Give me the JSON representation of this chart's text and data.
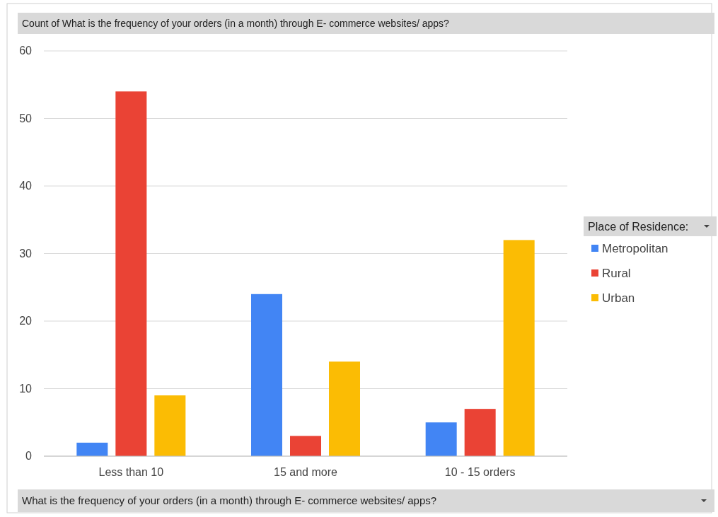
{
  "chart_data": {
    "type": "bar",
    "title": "Count of What is the frequency of your orders (in a month) through E- commerce websites/ apps?",
    "xlabel": "What is the frequency of your orders (in a month) through E- commerce websites/ apps?",
    "legend_title": "Place of Residence:",
    "categories": [
      "Less than 10",
      "15 and more",
      "10 - 15 orders"
    ],
    "series": [
      {
        "name": "Metropolitan",
        "color": "#4285f4",
        "values": [
          2,
          24,
          5
        ]
      },
      {
        "name": "Rural",
        "color": "#ea4335",
        "values": [
          54,
          3,
          7
        ]
      },
      {
        "name": "Urban",
        "color": "#fbbc04",
        "values": [
          9,
          14,
          32
        ]
      }
    ],
    "ylim": [
      0,
      60
    ],
    "yticks": [
      0,
      10,
      20,
      30,
      40,
      50,
      60
    ],
    "grid": "y",
    "legend": "right"
  }
}
